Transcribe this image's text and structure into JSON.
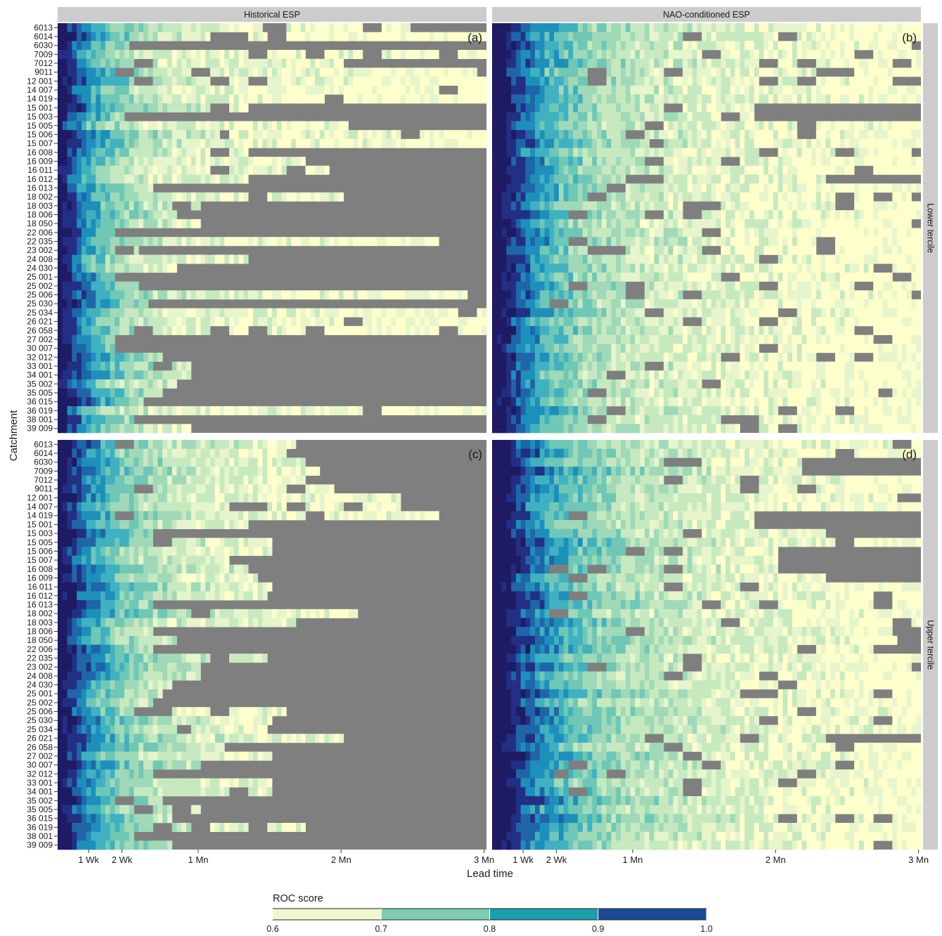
{
  "chart_data": {
    "type": "heatmap",
    "xlabel": "Lead time",
    "ylabel": "Catchment",
    "x_ticks": [
      {
        "label": "1 Wk",
        "day": 7
      },
      {
        "label": "2 Wk",
        "day": 14
      },
      {
        "label": "1 Mn",
        "day": 30
      },
      {
        "label": "2 Mn",
        "day": 60
      },
      {
        "label": "3 Mn",
        "day": 90
      }
    ],
    "x_range_days": [
      1,
      90
    ],
    "columns": [
      "Historical ESP",
      "NAO-conditioned ESP"
    ],
    "rows": [
      "Lower tercile",
      "Upper tercile"
    ],
    "panel_labels": [
      "(a)",
      "(b)",
      "(c)",
      "(d)"
    ],
    "catchments": [
      "6013",
      "6014",
      "6030",
      "7009",
      "7012",
      "9011",
      "12001",
      "14007",
      "14019",
      "15001",
      "15003",
      "15005",
      "15006",
      "15007",
      "16008",
      "16009",
      "16011",
      "16012",
      "16013",
      "18002",
      "18003",
      "18006",
      "18050",
      "22006",
      "22035",
      "23002",
      "24008",
      "24030",
      "25001",
      "25002",
      "25006",
      "25030",
      "25034",
      "26021",
      "26058",
      "27002",
      "30007",
      "32012",
      "33001",
      "34001",
      "35002",
      "35005",
      "36015",
      "36019",
      "38001",
      "39009"
    ],
    "catchment_labels": [
      "6013",
      "6014",
      "6030",
      "7009",
      "7012",
      "9011",
      "12 001",
      "14 007",
      "14 019",
      "15 001",
      "15 003",
      "15 005",
      "15 006",
      "15 007",
      "16 008",
      "16 009",
      "16 011",
      "16 012",
      "16 013",
      "18 002",
      "18 003",
      "18 006",
      "18 050",
      "22 006",
      "22 035",
      "23 002",
      "24 008",
      "24 030",
      "25 001",
      "25 002",
      "25 006",
      "25 030",
      "25 034",
      "26 021",
      "26 058",
      "27 002",
      "30 007",
      "32 012",
      "33 001",
      "34 001",
      "35 002",
      "35 005",
      "36 015",
      "36 019",
      "38 001",
      "39 009"
    ],
    "skill_horizon_days": {
      "a": [
        74,
        92,
        15,
        92,
        60,
        92,
        92,
        92,
        92,
        40,
        14,
        61,
        92,
        92,
        40,
        52,
        57,
        40,
        20,
        60,
        30,
        25,
        30,
        20,
        80,
        17,
        40,
        25,
        12,
        17,
        86,
        19,
        90,
        92,
        92,
        12,
        12,
        22,
        28,
        28,
        25,
        22,
        18,
        92,
        16,
        28
      ],
      "b": [
        92,
        92,
        92,
        92,
        92,
        92,
        92,
        92,
        92,
        55,
        55,
        92,
        92,
        92,
        92,
        92,
        92,
        70,
        92,
        92,
        92,
        92,
        92,
        92,
        92,
        92,
        92,
        92,
        92,
        92,
        92,
        92,
        92,
        92,
        92,
        92,
        92,
        92,
        92,
        92,
        92,
        92,
        92,
        92,
        92,
        92
      ],
      "c": [
        50,
        48,
        55,
        55,
        52,
        58,
        72,
        72,
        80,
        40,
        20,
        45,
        45,
        40,
        40,
        42,
        45,
        44,
        20,
        63,
        50,
        20,
        25,
        20,
        45,
        30,
        30,
        24,
        22,
        20,
        48,
        45,
        45,
        60,
        35,
        45,
        30,
        20,
        45,
        45,
        22,
        30,
        28,
        60,
        16,
        25
      ],
      "d": [
        92,
        92,
        65,
        65,
        92,
        92,
        85,
        92,
        55,
        55,
        70,
        92,
        60,
        60,
        60,
        70,
        92,
        92,
        92,
        92,
        92,
        85,
        85,
        80,
        92,
        92,
        92,
        92,
        92,
        92,
        92,
        92,
        92,
        70,
        92,
        92,
        92,
        92,
        92,
        92,
        92,
        92,
        92,
        92,
        92,
        92
      ]
    },
    "legend": {
      "title": "ROC score",
      "breaks": [
        "0.6",
        "0.7",
        "0.8",
        "0.9",
        "1.0"
      ],
      "colors": [
        "#edf8d0",
        "#7ccdb0",
        "#1d9eab",
        "#1a4a95"
      ]
    },
    "colors": {
      "not_skillful": "#7f7f7f",
      "strip_bg": "#cccccc",
      "ramp": [
        "#ffffcc",
        "#e6f5cc",
        "#c7e9c0",
        "#9fd9b8",
        "#6fc7b6",
        "#3fb1c0",
        "#1d8fbb",
        "#1f66a8",
        "#222f85",
        "#1e1b63"
      ]
    }
  }
}
